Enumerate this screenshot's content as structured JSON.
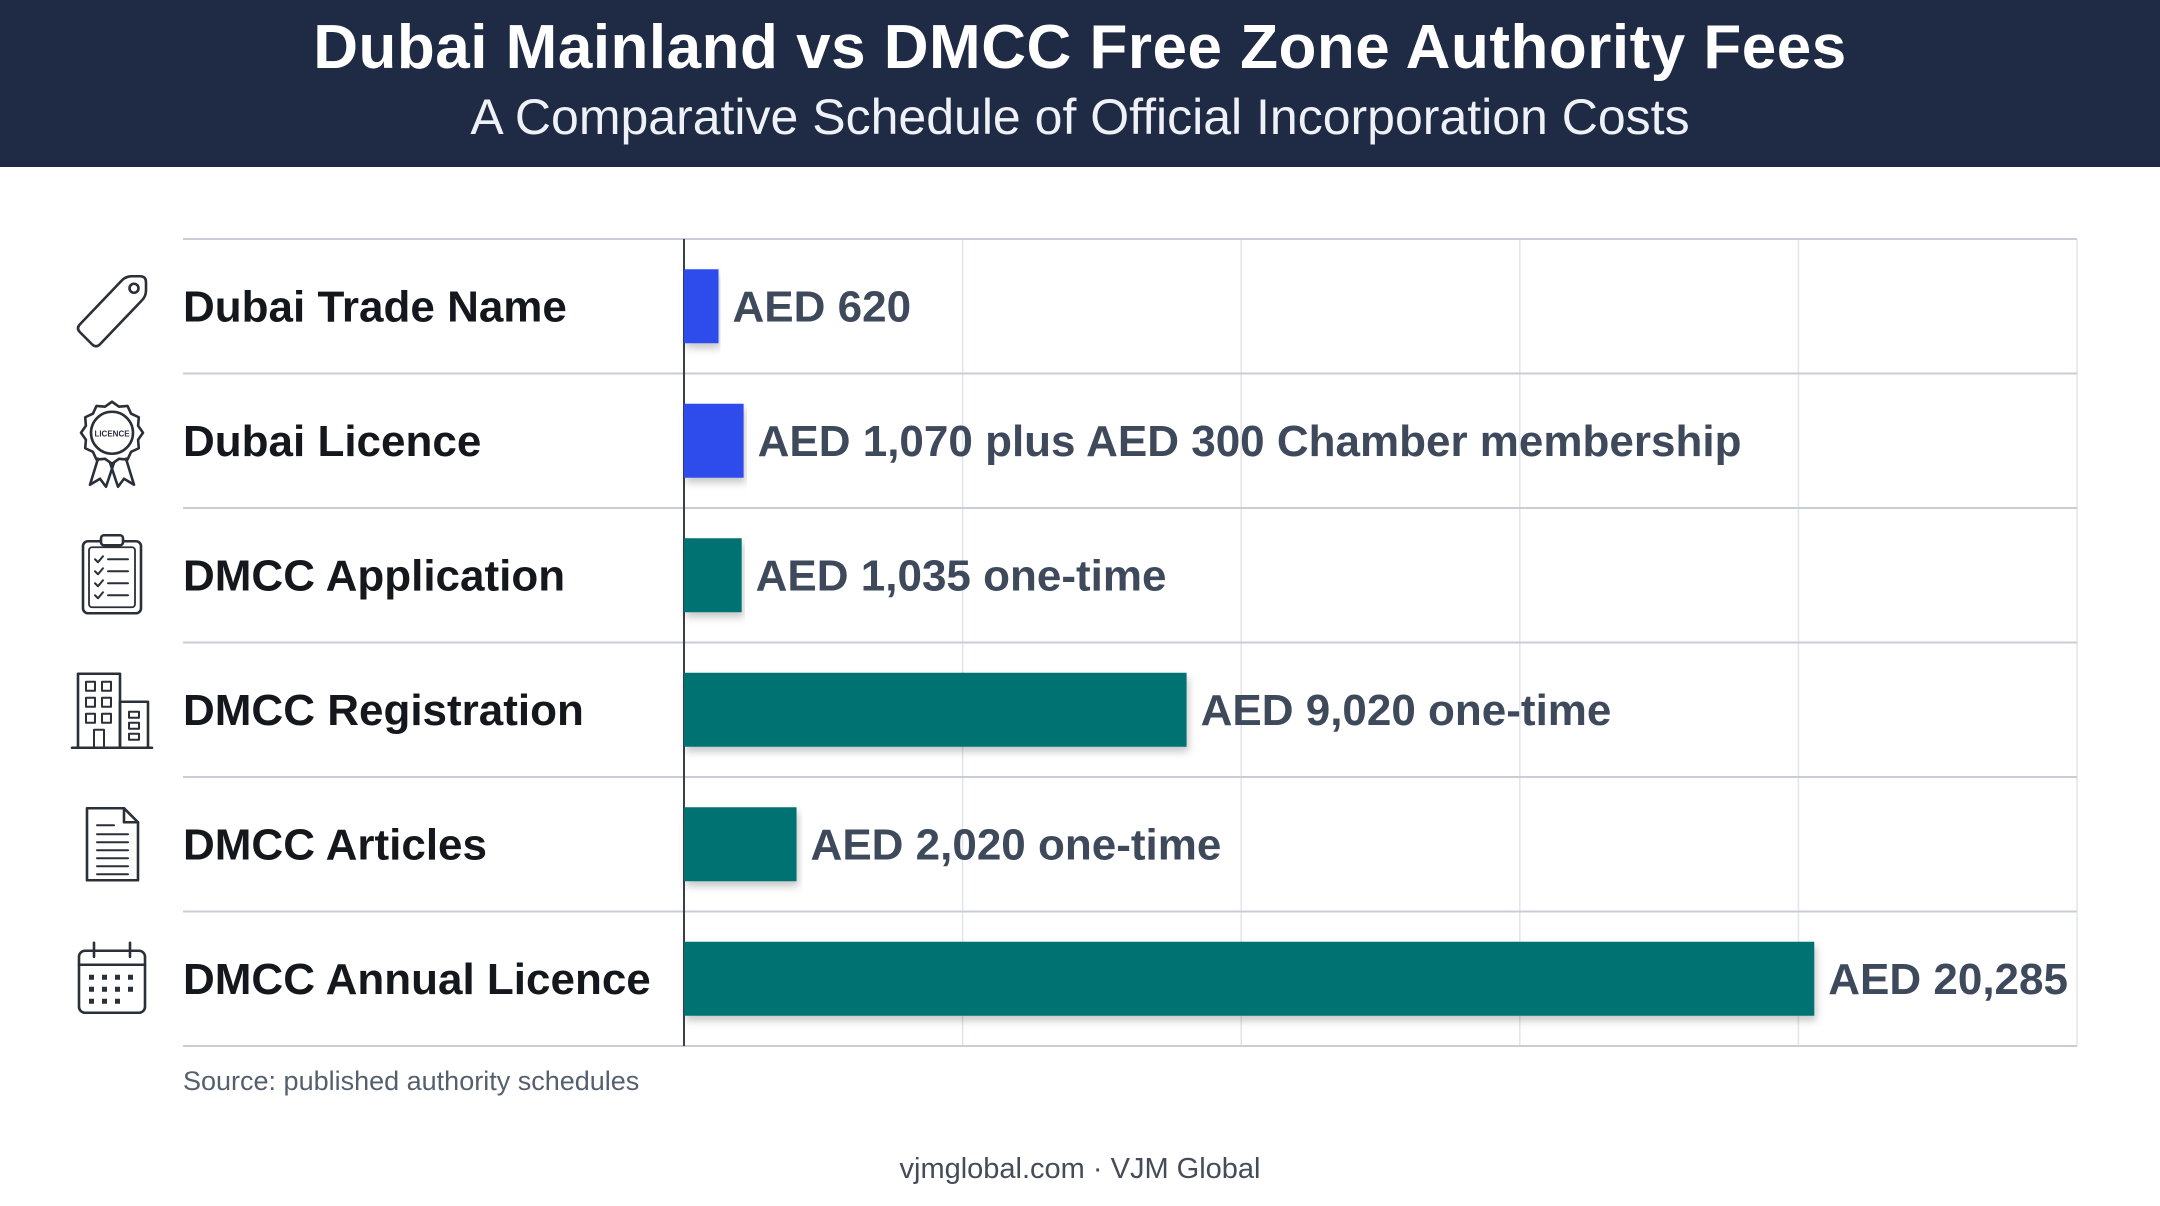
{
  "header": {
    "title": "Dubai Mainland vs DMCC Free Zone Authority Fees",
    "subtitle": "A Comparative Schedule of Official Incorporation Costs"
  },
  "chart_data": {
    "type": "bar",
    "orientation": "horizontal",
    "title": "Dubai Mainland vs DMCC Free Zone Authority Fees",
    "subtitle": "A Comparative Schedule of Official Incorporation Costs",
    "xlabel": "",
    "ylabel": "",
    "xlim": [
      0,
      25000
    ],
    "grid": true,
    "categories": [
      "Dubai Trade Name",
      "Dubai Licence",
      "DMCC Application",
      "DMCC Registration",
      "DMCC Articles",
      "DMCC Annual Licence"
    ],
    "values": [
      620,
      1070,
      1035,
      9020,
      2020,
      20285
    ],
    "data_labels": [
      "AED 620",
      "AED 1,070 plus AED 300 Chamber membership",
      "AED 1,035 one-time",
      "AED 9,020 one-time",
      "AED 2,020 one-time",
      "AED 20,285"
    ],
    "groups": [
      "mainland",
      "mainland",
      "dmcc",
      "dmcc",
      "dmcc",
      "dmcc"
    ],
    "icons": [
      "tag-icon",
      "licence-badge-icon",
      "clipboard-checklist-icon",
      "office-building-icon",
      "document-icon",
      "calendar-icon"
    ],
    "colors": {
      "mainland": "#2f4bec",
      "dmcc": "#047272"
    },
    "badge_text": "LICENCE"
  },
  "source": "Source: published authority schedules",
  "footer": "vjmglobal.com · VJM Global"
}
